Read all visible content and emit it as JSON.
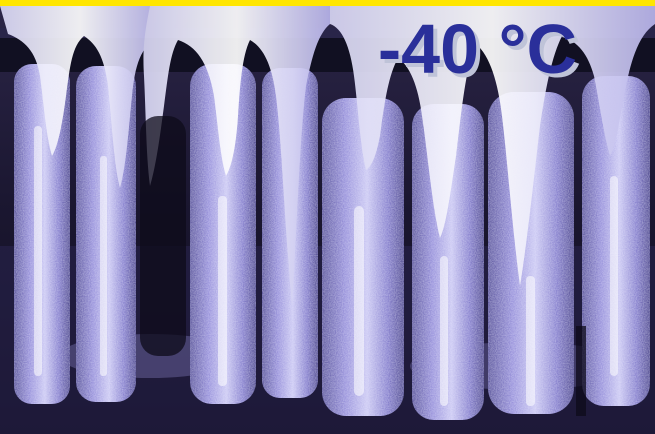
{
  "image": {
    "subject": "icicles",
    "temperature_label": "-40 °C",
    "colors": {
      "top_strip": "#ffe600",
      "label": "#2a2f9a",
      "label_shadow": "#bfc3d8",
      "ice_tint": "#6f68b8",
      "background_dark": "#151225"
    }
  }
}
